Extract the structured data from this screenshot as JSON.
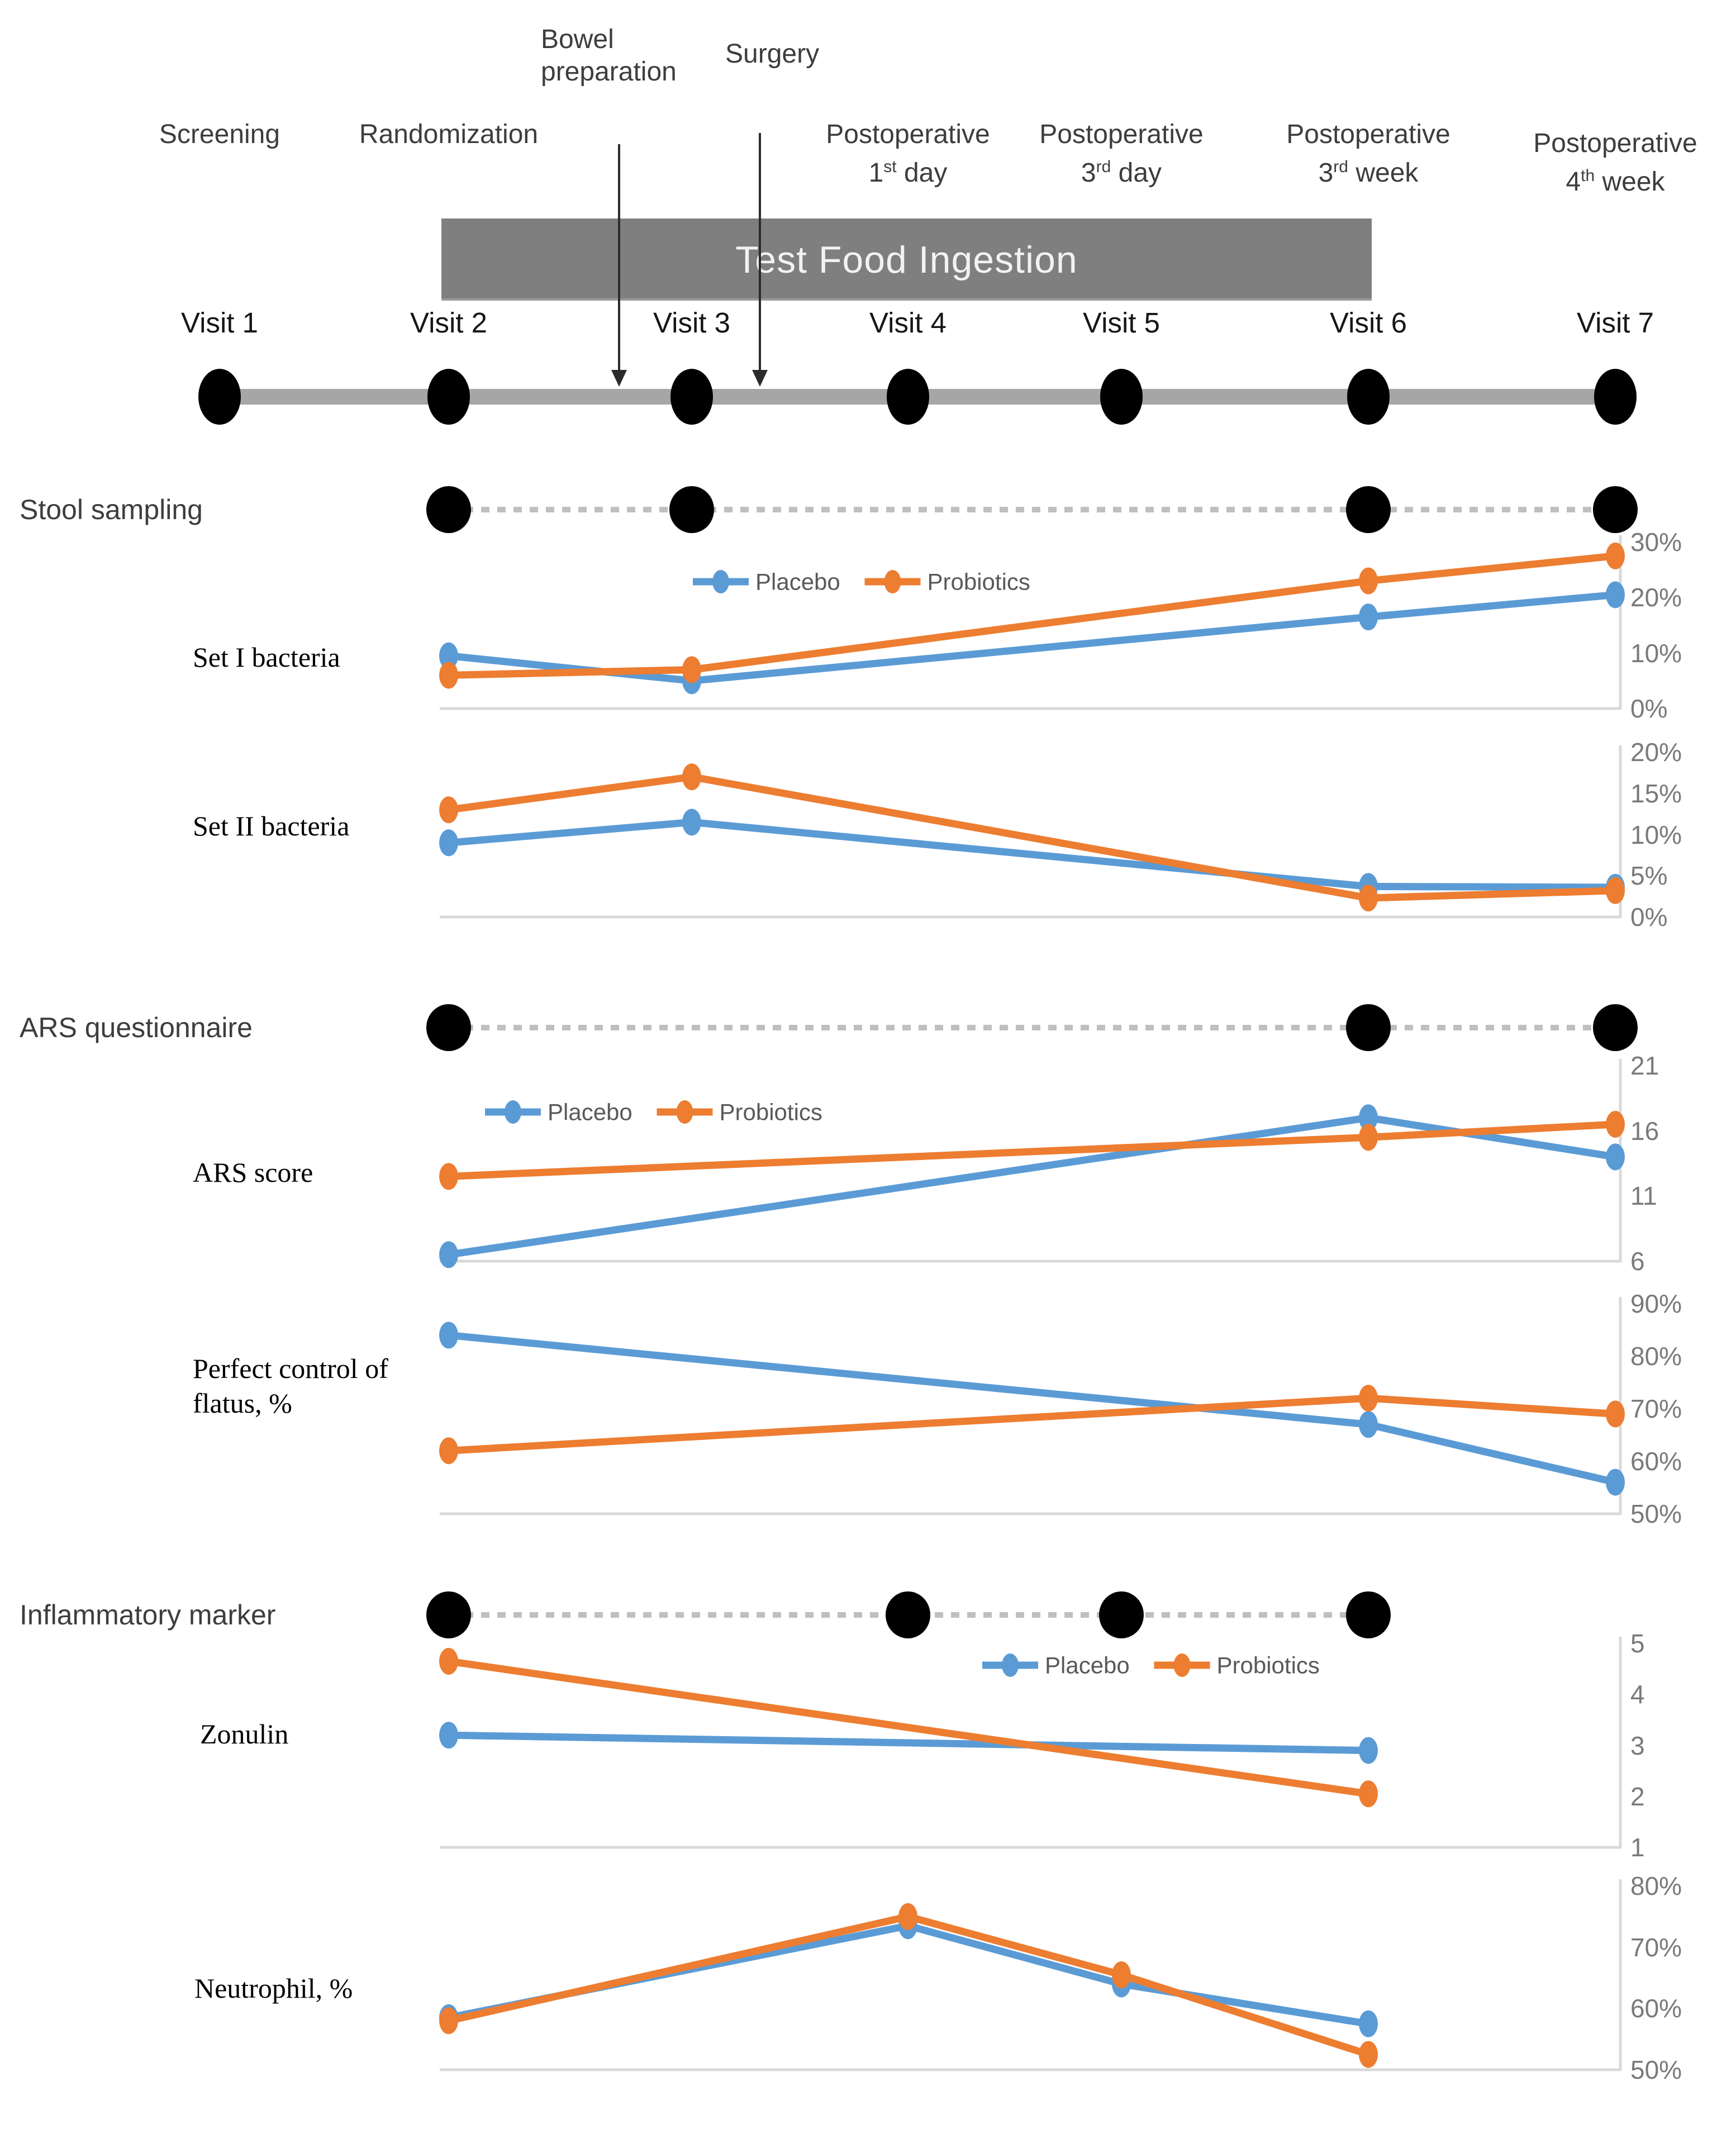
{
  "palette": {
    "placebo_blue": "#5B9BD5",
    "probiotics_orange": "#ED7D31",
    "test_food_bar_gray": "#7F7F7F",
    "timeline_bar_gray": "#A6A6A6",
    "dot_black": "#000000",
    "axis_line_gray": "#D9D9D9",
    "dashed_line_gray": "#BFBFBF",
    "tick_text_gray": "#7A7A7A",
    "arrow_black": "#2b2b2b"
  },
  "timeline": {
    "visits": [
      "Visit 1",
      "Visit 2",
      "Visit 3",
      "Visit 4",
      "Visit 5",
      "Visit 6",
      "Visit 7"
    ],
    "phases": [
      {
        "line1": "Screening",
        "visit": 1
      },
      {
        "line1": "Randomization",
        "visit": 2
      },
      {
        "line1": "Postoperative",
        "num": "1",
        "ord": "st",
        "unit": "day",
        "visit": 4
      },
      {
        "line1": "Postoperative",
        "num": "3",
        "ord": "rd",
        "unit": "day",
        "visit": 5
      },
      {
        "line1": "Postoperative",
        "num": "3",
        "ord": "rd",
        "unit": "week",
        "visit": 6
      },
      {
        "line1": "Postoperative",
        "num": "4",
        "ord": "th",
        "unit": "week",
        "visit": 7
      }
    ],
    "arrows": [
      {
        "lines": [
          "Bowel",
          "preparation"
        ]
      },
      {
        "lines": [
          "Surgery"
        ]
      }
    ],
    "test_food_label": "Test Food Ingestion"
  },
  "sampling_rows": [
    {
      "label": "Stool sampling",
      "dot_visits": [
        2,
        3,
        6,
        7
      ],
      "dash_to_visit": 7
    },
    {
      "label": "ARS questionnaire",
      "dot_visits": [
        2,
        6,
        7
      ],
      "dash_to_visit": 7
    },
    {
      "label": "Inflammatory marker",
      "dot_visits": [
        2,
        4,
        5,
        6
      ],
      "dash_to_visit": 6
    }
  ],
  "chart_data": [
    {
      "type": "line",
      "title": "Set I bacteria",
      "x_visits": [
        2,
        3,
        6,
        7
      ],
      "ylim": [
        0,
        30
      ],
      "yticks": [
        0,
        10,
        20,
        30
      ],
      "tick_suffix": "%",
      "legend": true,
      "legend_position": "top-center",
      "grid": false,
      "axis_side": "right",
      "series": [
        {
          "name": "Placebo",
          "values": [
            9.5,
            5,
            16.5,
            20.5
          ]
        },
        {
          "name": "Probiotics",
          "values": [
            6,
            7,
            23,
            27.5
          ]
        }
      ]
    },
    {
      "type": "line",
      "title": "Set II bacteria",
      "x_visits": [
        2,
        3,
        6,
        7
      ],
      "ylim": [
        0,
        20
      ],
      "yticks": [
        0,
        5,
        10,
        15,
        20
      ],
      "tick_suffix": "%",
      "legend": false,
      "grid": false,
      "axis_side": "right",
      "series": [
        {
          "name": "Placebo",
          "values": [
            9,
            11.5,
            3.7,
            3.6
          ]
        },
        {
          "name": "Probiotics",
          "values": [
            13,
            17,
            2.3,
            3.2
          ]
        }
      ]
    },
    {
      "type": "line",
      "title": "ARS score",
      "x_visits": [
        2,
        6,
        7
      ],
      "ylim": [
        6,
        21
      ],
      "yticks": [
        6,
        11,
        16,
        21
      ],
      "tick_suffix": "",
      "legend": true,
      "legend_position": "top-left",
      "grid": false,
      "axis_side": "right",
      "series": [
        {
          "name": "Placebo",
          "values": [
            6.5,
            17,
            14
          ]
        },
        {
          "name": "Probiotics",
          "values": [
            12.5,
            15.5,
            16.5
          ]
        }
      ]
    },
    {
      "type": "line",
      "title": "Perfect control of flatus, %",
      "x_visits": [
        2,
        6,
        7
      ],
      "ylim": [
        50,
        90
      ],
      "yticks": [
        50,
        60,
        70,
        80,
        90
      ],
      "tick_suffix": "%",
      "legend": false,
      "grid": false,
      "axis_side": "right",
      "series": [
        {
          "name": "Placebo",
          "values": [
            84,
            67,
            56
          ]
        },
        {
          "name": "Probiotics",
          "values": [
            62,
            72,
            69
          ]
        }
      ]
    },
    {
      "type": "line",
      "title": "Zonulin",
      "x_visits": [
        2,
        6
      ],
      "ylim": [
        1,
        5
      ],
      "yticks": [
        1,
        2,
        3,
        4,
        5
      ],
      "tick_suffix": "",
      "legend": true,
      "legend_position": "top-center",
      "grid": false,
      "axis_side": "right",
      "series": [
        {
          "name": "Placebo",
          "values": [
            3.2,
            2.9
          ]
        },
        {
          "name": "Probiotics",
          "values": [
            4.65,
            2.05
          ]
        }
      ]
    },
    {
      "type": "line",
      "title": "Neutrophil, %",
      "x_visits": [
        2,
        4,
        5,
        6
      ],
      "ylim": [
        50,
        80
      ],
      "yticks": [
        50,
        60,
        70,
        80
      ],
      "tick_suffix": "%",
      "legend": false,
      "grid": false,
      "axis_side": "right",
      "series": [
        {
          "name": "Placebo",
          "values": [
            58.5,
            73.5,
            64,
            57.5
          ]
        },
        {
          "name": "Probiotics",
          "values": [
            58,
            75,
            65.5,
            52.5
          ]
        }
      ]
    }
  ]
}
